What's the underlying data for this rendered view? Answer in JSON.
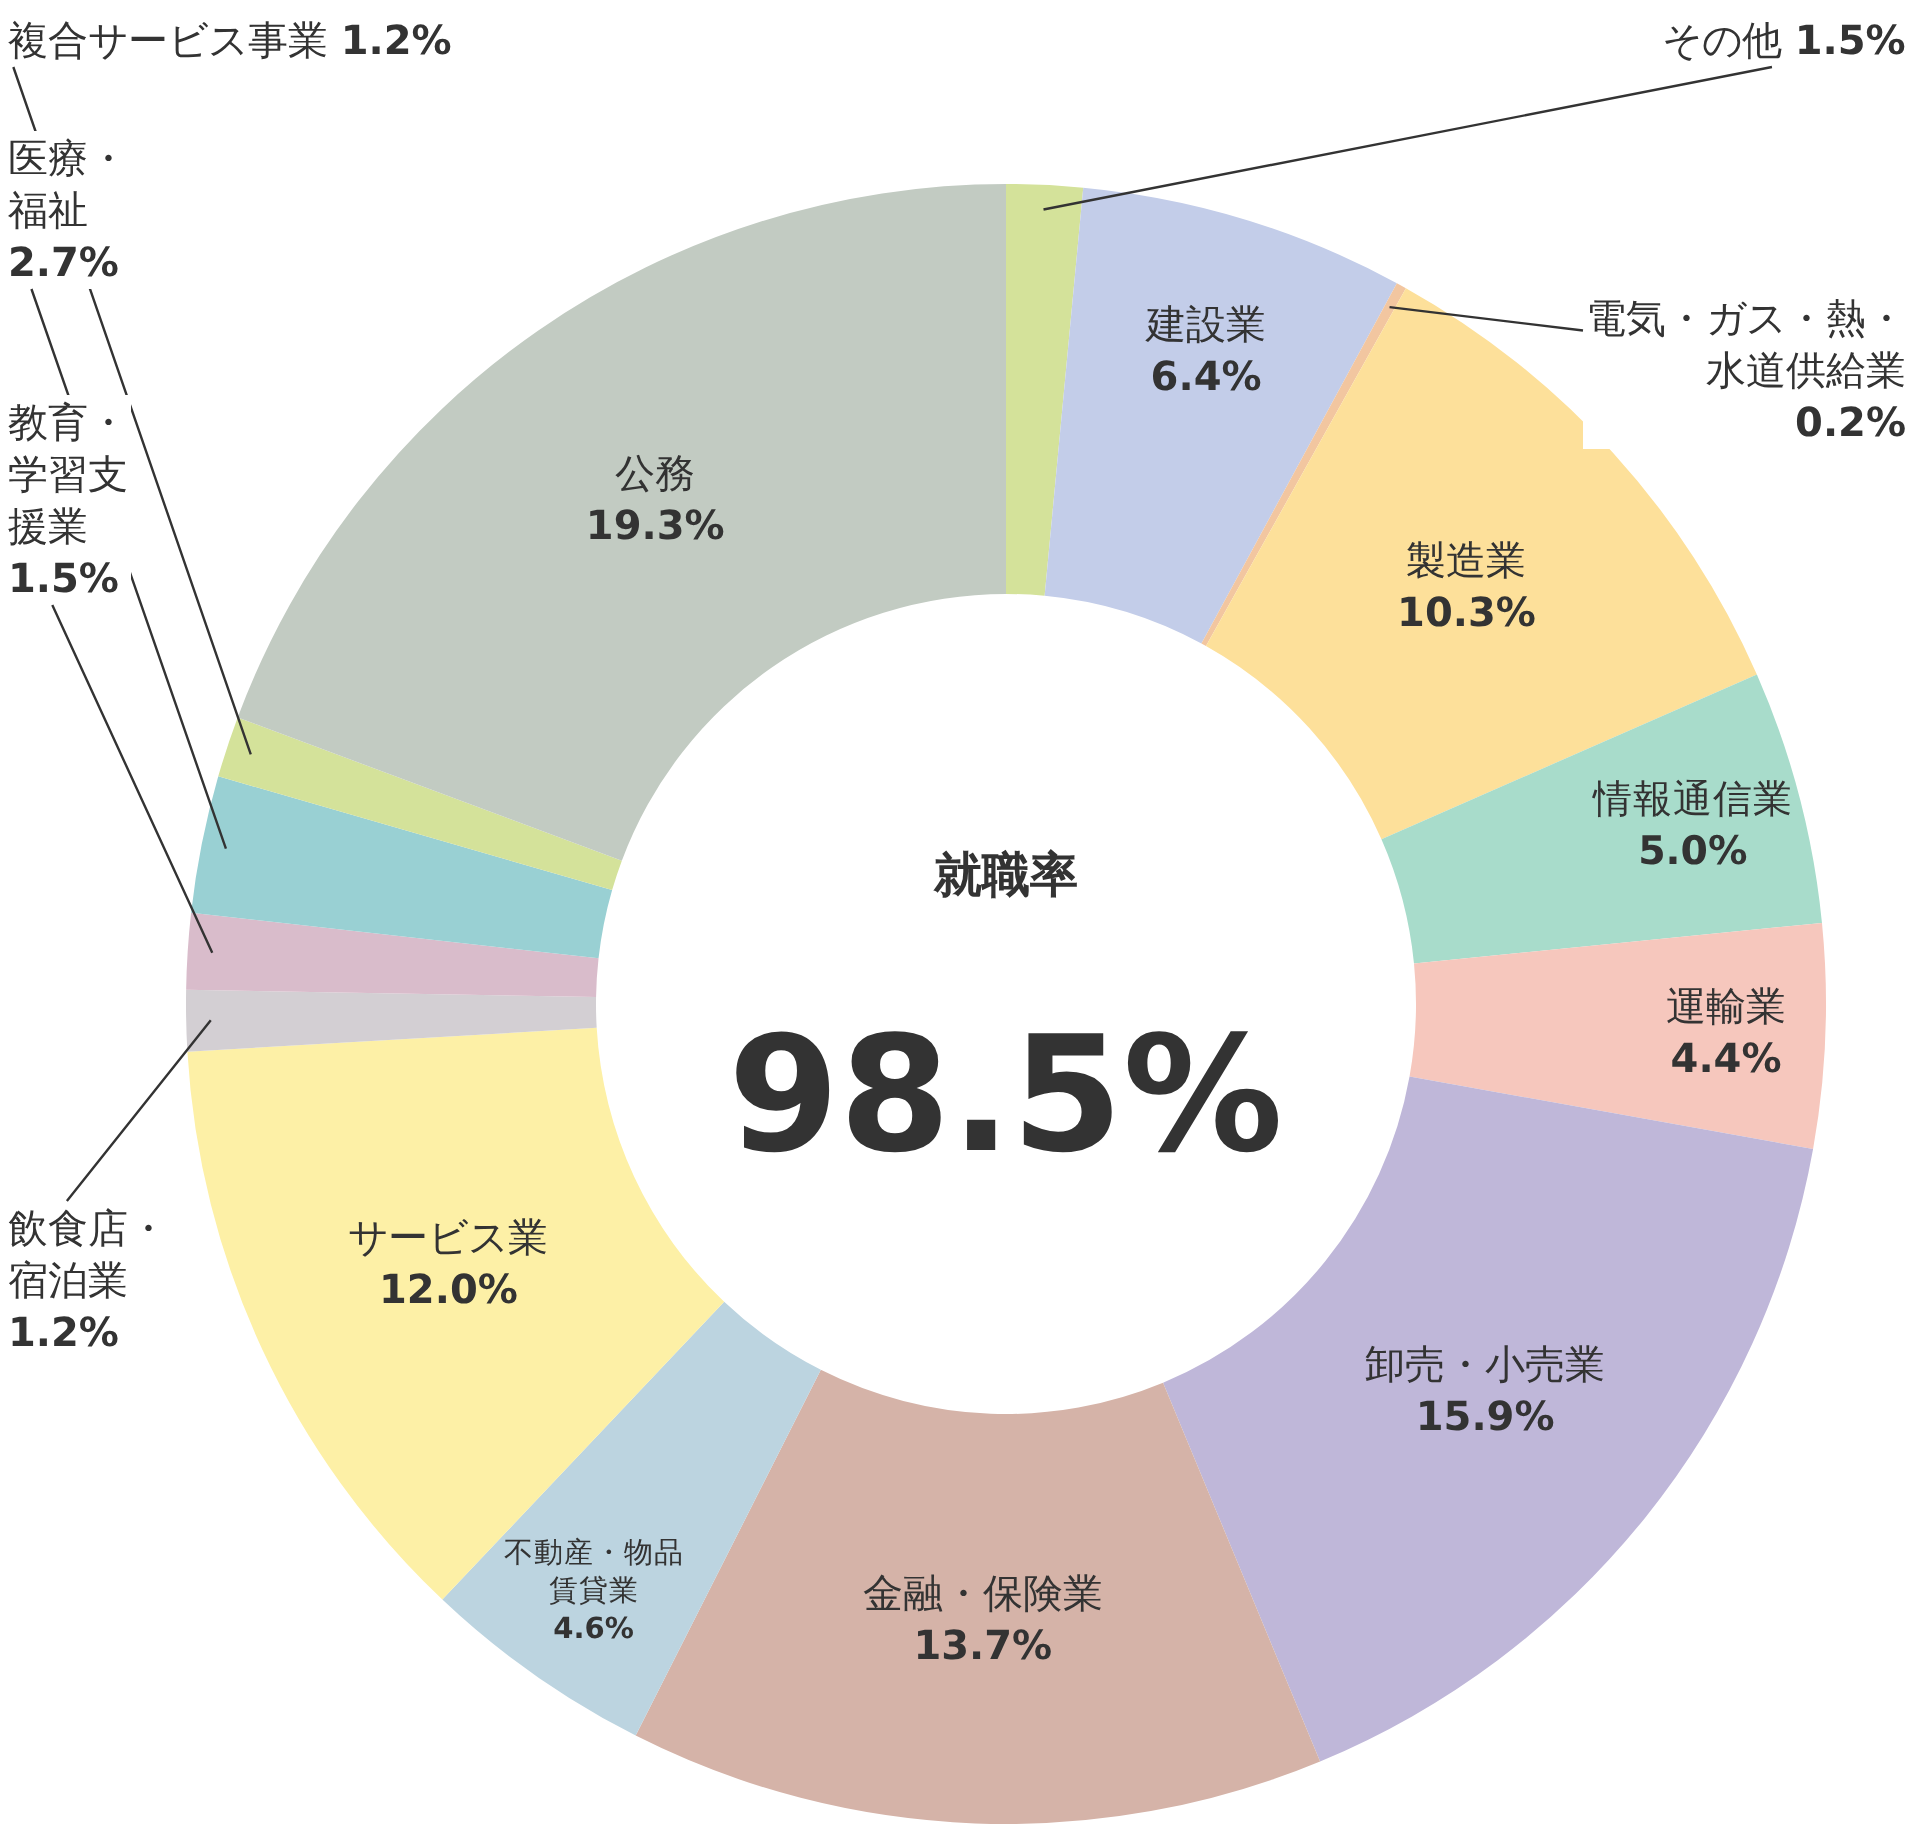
{
  "chart_data": {
    "type": "donut",
    "title": "就職率",
    "annotations": [
      "98.5%"
    ],
    "categories": [
      "その他",
      "建設業",
      "電気・ガス・熱・水道供給業",
      "製造業",
      "情報通信業",
      "運輸業",
      "卸売・小売業",
      "金融・保険業",
      "不動産・物品賃貸業",
      "サービス業",
      "飲食店・宿泊業",
      "教育・学習支援業",
      "医療・福祉",
      "複合サービス事業",
      "公務"
    ],
    "values": [
      1.5,
      6.4,
      0.2,
      10.3,
      5.0,
      4.4,
      15.9,
      13.7,
      4.6,
      12.0,
      1.2,
      1.5,
      2.7,
      1.2,
      19.3
    ],
    "value_labels": [
      "1.5%",
      "6.4%",
      "0.2%",
      "10.3%",
      "5.0%",
      "4.4%",
      "15.9%",
      "13.7%",
      "4.6%",
      "12.0%",
      "1.2%",
      "1.5%",
      "2.7%",
      "1.2%",
      "19.3%"
    ],
    "colors": [
      "#d4e29a",
      "#c3cde9",
      "#f2c6a0",
      "#fde09a",
      "#a8dccb",
      "#f6c7bd",
      "#bfb7d9",
      "#d5b3a8",
      "#bcd4e0",
      "#fdf0a6",
      "#d3cfd3",
      "#d9bccb",
      "#99d0d3",
      "#d4e29a",
      "#c2cbc2"
    ],
    "legend": false
  }
}
